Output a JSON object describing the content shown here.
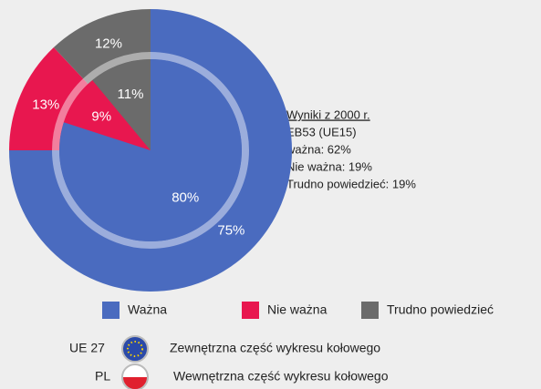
{
  "chart_data": {
    "type": "pie",
    "categories": [
      "Ważna",
      "Nie ważna",
      "Trudno powiedzieć"
    ],
    "colors": [
      "#4a6bbf",
      "#e8174f",
      "#6b6b6b"
    ],
    "series": [
      {
        "name": "UE 27",
        "description": "Zewnętrzna część wykresu kołowego",
        "values": [
          75,
          13,
          12
        ],
        "value_labels": [
          "75%",
          "13%",
          "12%"
        ]
      },
      {
        "name": "PL",
        "description": "Wewnętrzna część wykresu kołowego",
        "values": [
          80,
          9,
          11
        ],
        "value_labels": [
          "80%",
          "9%",
          "11%"
        ]
      }
    ],
    "annotation": {
      "title": "Wyniki z 2000 r.",
      "lines": [
        "EB53 (UE15)",
        "ważna: 62%",
        "Nie ważna: 19%",
        "Trudno powiedzieć: 19%"
      ]
    }
  }
}
